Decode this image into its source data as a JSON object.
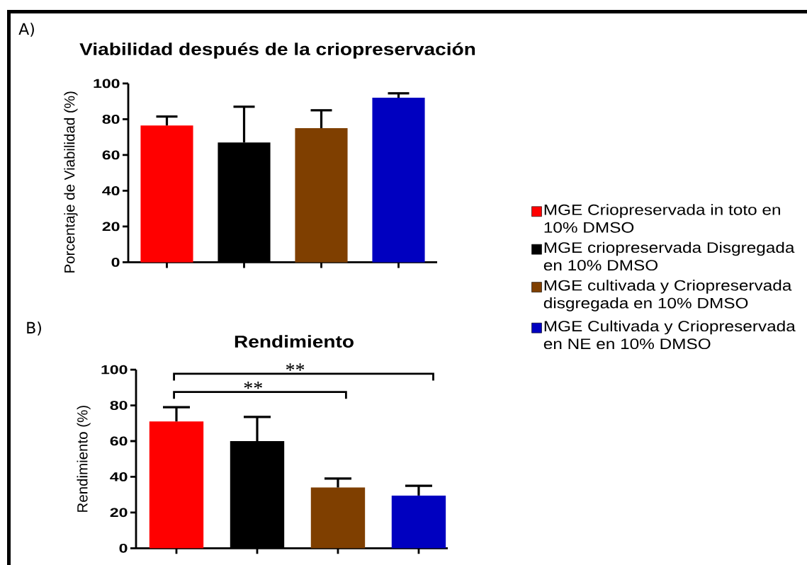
{
  "chart_data": [
    {
      "type": "bar",
      "title": "Viabilidad después de la criopreservación",
      "ylabel": "Porcentaje de Viabilidad (%)",
      "annotations": [
        "A)"
      ],
      "categories": [
        null,
        null,
        null,
        null
      ],
      "series": [
        {
          "name": "MGE Criopreservada in toto en 10% DMSO",
          "color": "#ff0000",
          "values": [
            76.5,
            null,
            null,
            null
          ],
          "errors": [
            [
              76.5,
              81.5
            ],
            null,
            null,
            null
          ]
        },
        {
          "name": "MGE criopreservada Disgregada en 10% DMSO",
          "color": "#000000",
          "values": [
            null,
            67,
            null,
            null
          ],
          "errors": [
            null,
            [
              67,
              87
            ],
            null,
            null
          ]
        },
        {
          "name": "MGE cultivada y Criopreservada disgregada en 10% DMSO",
          "color": "#7f3f00",
          "values": [
            null,
            null,
            75,
            null
          ],
          "errors": [
            null,
            null,
            [
              75,
              85
            ],
            null
          ]
        },
        {
          "name": "MGE Cultivada y Criopreservada en NE en 10% DMSO",
          "color": "#0000c0",
          "values": [
            null,
            null,
            null,
            92
          ],
          "errors": [
            null,
            null,
            null,
            [
              92,
              94.5
            ]
          ]
        }
      ],
      "ylim": [
        0,
        100
      ],
      "yticks": [
        0,
        20,
        40,
        60,
        80,
        100
      ],
      "tick_labels": "y",
      "legend": "right"
    },
    {
      "type": "bar",
      "title": "Rendimiento",
      "ylabel": "Rendimiento (%)",
      "annotations": [
        "B)",
        "**",
        "**"
      ],
      "categories": [
        null,
        null,
        null,
        null
      ],
      "series": [
        {
          "color": "#ff0000",
          "values": [
            71,
            null,
            null,
            null
          ],
          "errors": [
            [
              71,
              79
            ],
            null,
            null,
            null
          ]
        },
        {
          "color": "#000000",
          "values": [
            null,
            60,
            null,
            null
          ],
          "errors": [
            null,
            [
              60,
              73.5
            ],
            null,
            null
          ]
        },
        {
          "color": "#7f3f00",
          "values": [
            null,
            null,
            34,
            null
          ],
          "errors": [
            null,
            null,
            [
              34,
              39
            ],
            null
          ]
        },
        {
          "color": "#0000c0",
          "values": [
            null,
            null,
            null,
            29.5
          ],
          "errors": [
            null,
            null,
            null,
            [
              29.5,
              35
            ]
          ]
        }
      ],
      "ylim": [
        0,
        100
      ],
      "yticks": [
        0,
        20,
        40,
        60,
        80,
        100
      ],
      "tick_labels": "y"
    }
  ]
}
